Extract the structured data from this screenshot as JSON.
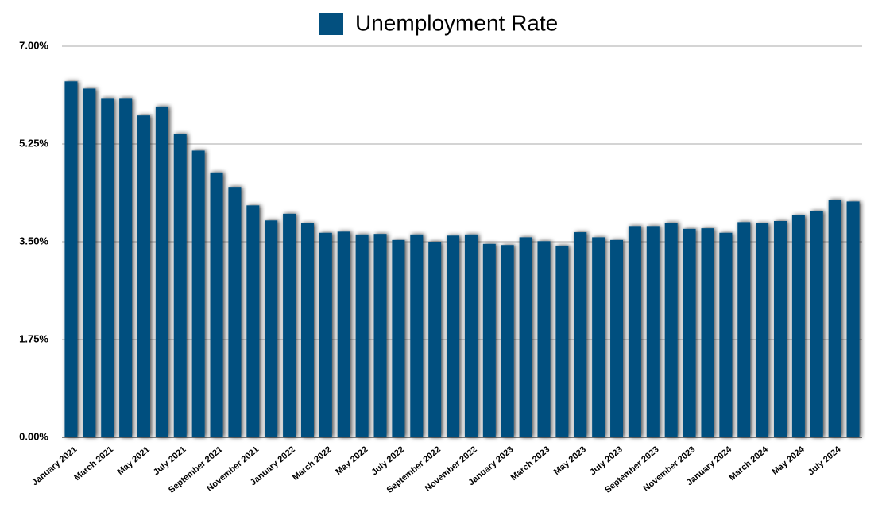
{
  "chart_data": {
    "type": "bar",
    "categories": [
      "January 2021",
      null,
      "March 2021",
      null,
      "May 2021",
      null,
      "July 2021",
      null,
      "September 2021",
      null,
      "November 2021",
      null,
      "January 2022",
      null,
      "March 2022",
      null,
      "May 2022",
      null,
      "July 2022",
      null,
      "September 2022",
      null,
      "November 2022",
      null,
      "January 2023",
      null,
      "March 2023",
      null,
      "May 2023",
      null,
      "July 2023",
      null,
      "September 2023",
      null,
      "November 2023",
      null,
      "January 2024",
      null,
      "March 2024",
      null,
      "May 2024",
      null,
      "July 2024",
      null
    ],
    "series": [
      {
        "name": "Unemployment Rate",
        "color": "#03507f",
        "values": [
          6.37,
          6.24,
          6.07,
          6.07,
          5.76,
          5.92,
          5.43,
          5.13,
          4.74,
          4.48,
          4.15,
          3.88,
          4.0,
          3.83,
          3.66,
          3.68,
          3.63,
          3.64,
          3.53,
          3.63,
          3.5,
          3.61,
          3.63,
          3.46,
          3.44,
          3.58,
          3.51,
          3.43,
          3.67,
          3.58,
          3.53,
          3.78,
          3.78,
          3.84,
          3.73,
          3.74,
          3.66,
          3.85,
          3.83,
          3.87,
          3.97,
          4.05,
          4.25,
          4.22
        ]
      }
    ],
    "ylim": [
      0,
      7
    ],
    "yticks": [
      {
        "value": 0,
        "label": "0.00%"
      },
      {
        "value": 1.75,
        "label": "1.75%"
      },
      {
        "value": 3.5,
        "label": "3.50%"
      },
      {
        "value": 5.25,
        "label": "5.25%"
      },
      {
        "value": 7,
        "label": "7.00%"
      }
    ],
    "grid": true,
    "legend": "top"
  }
}
